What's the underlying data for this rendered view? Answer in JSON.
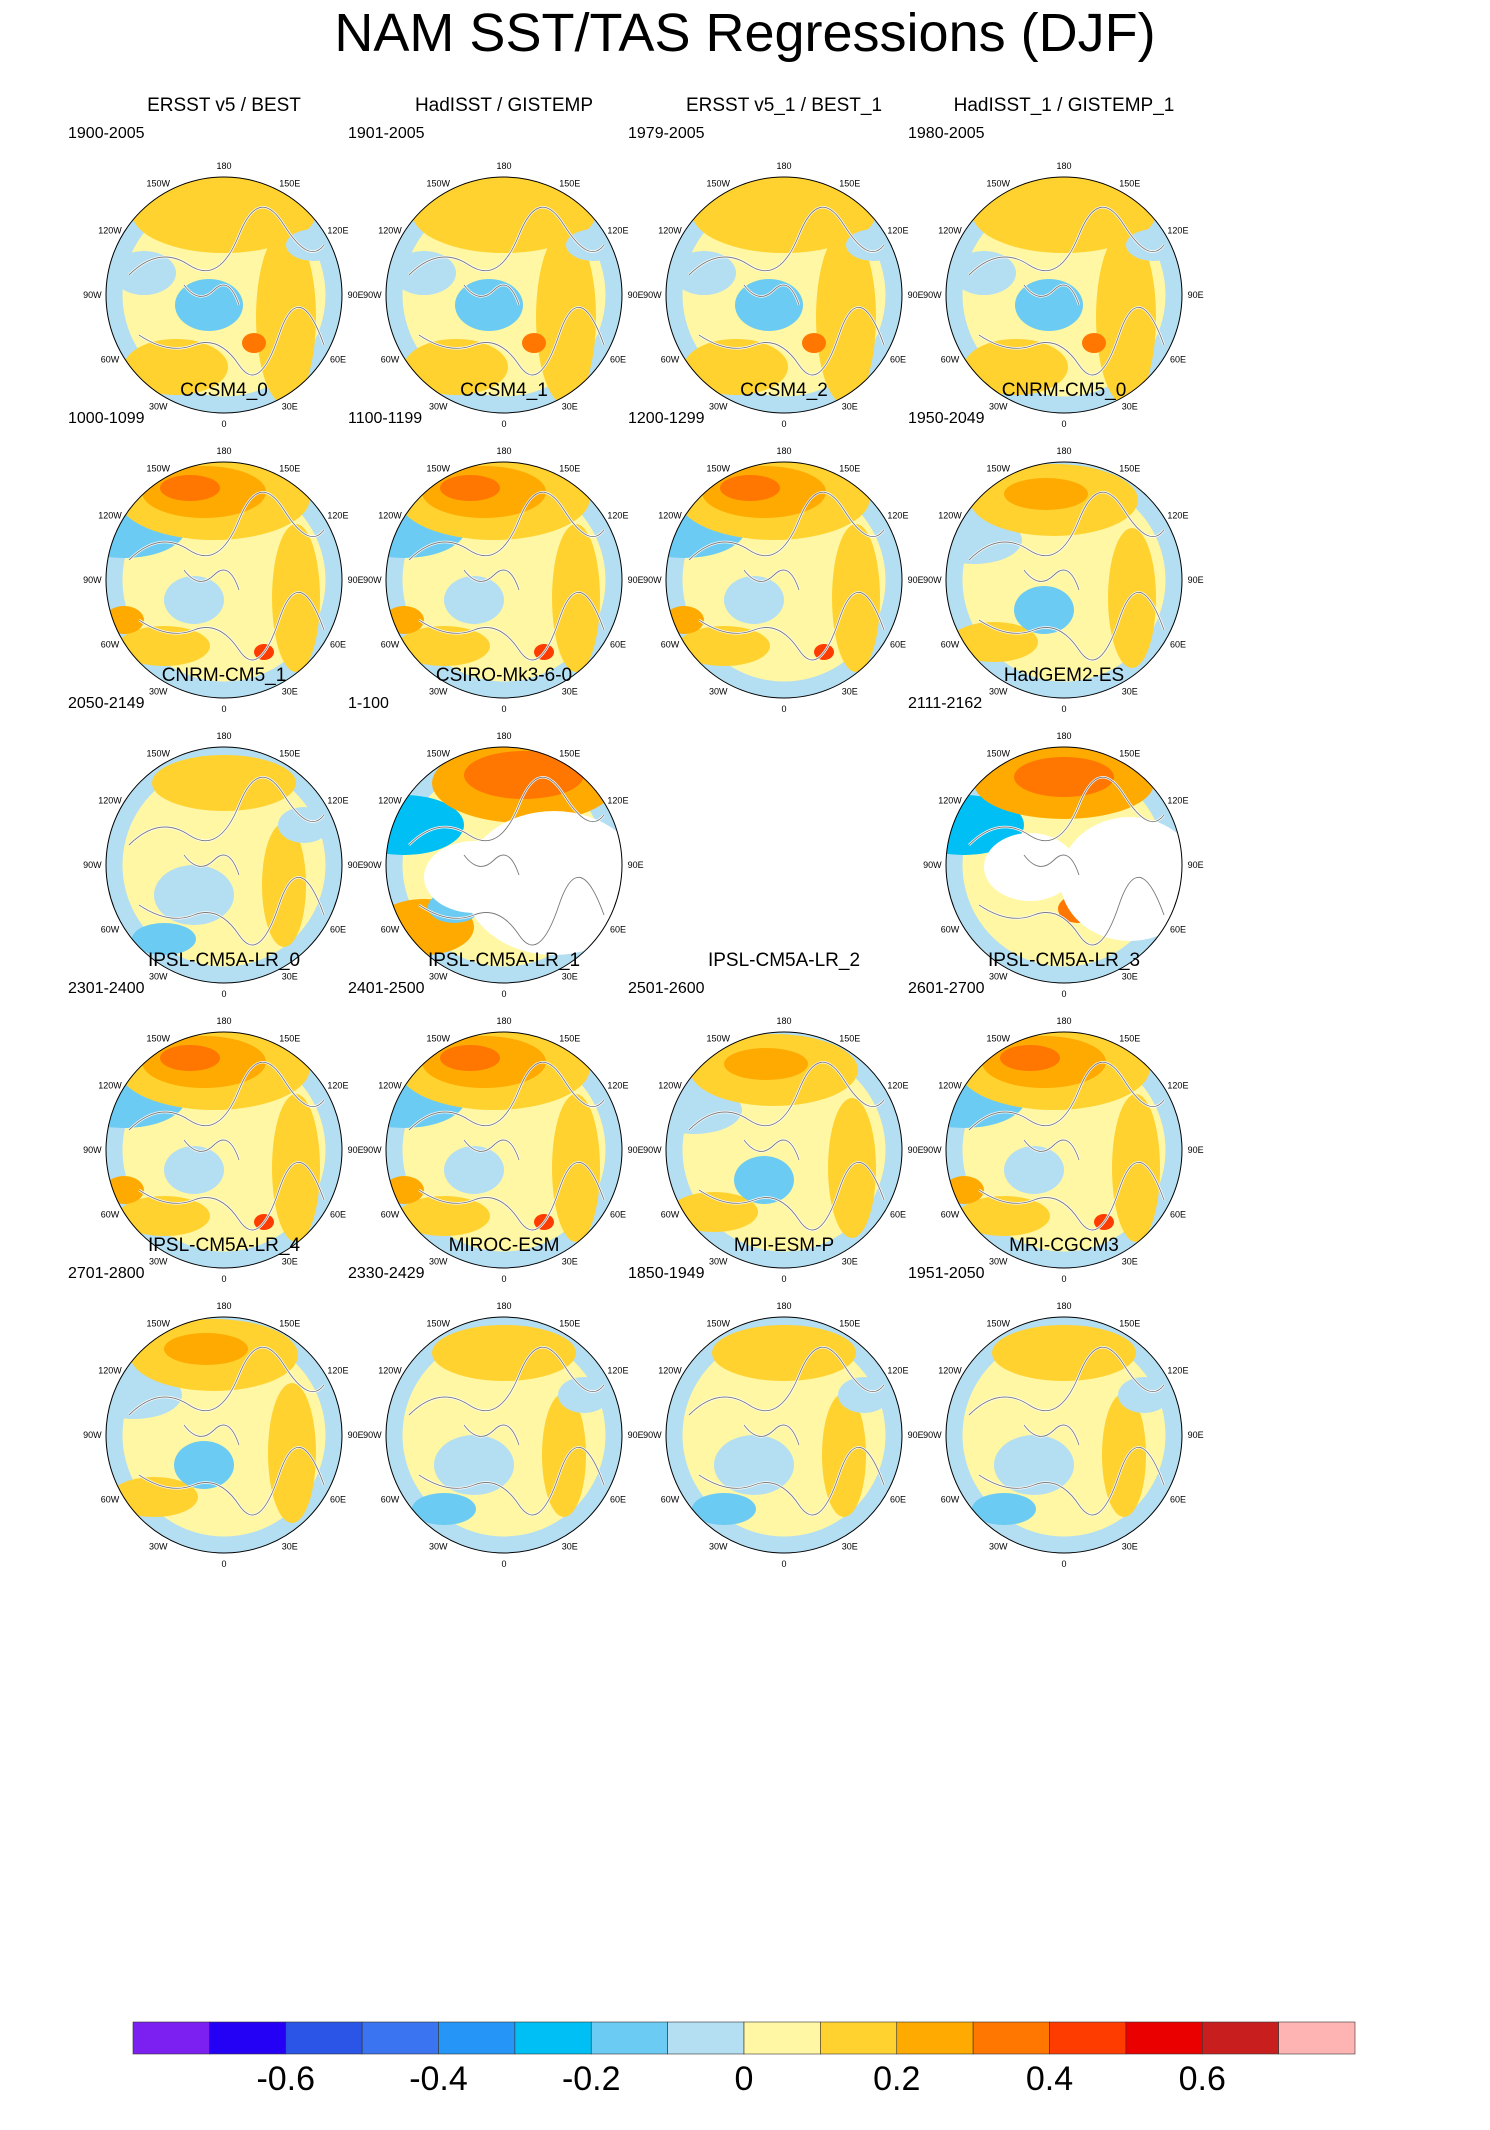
{
  "title": "NAM SST/TAS Regressions (DJF)",
  "longitude_labels": [
    "180",
    "150E",
    "120E",
    "90E",
    "60E",
    "30E",
    "0",
    "30W",
    "60W",
    "90W",
    "120W",
    "150W"
  ],
  "panels": [
    {
      "title": "ERSST v5 / BEST",
      "period": "1900-2005",
      "pattern": "obs"
    },
    {
      "title": "HadISST / GISTEMP",
      "period": "1901-2005",
      "pattern": "obs"
    },
    {
      "title": "ERSST v5_1 / BEST_1",
      "period": "1979-2005",
      "pattern": "obs"
    },
    {
      "title": "HadISST_1 / GISTEMP_1",
      "period": "1980-2005",
      "pattern": "obs"
    },
    {
      "title": "CCSM4_0",
      "period": "1000-1099",
      "pattern": "strong"
    },
    {
      "title": "CCSM4_1",
      "period": "1100-1199",
      "pattern": "strong"
    },
    {
      "title": "CCSM4_2",
      "period": "1200-1299",
      "pattern": "strong"
    },
    {
      "title": "CNRM-CM5_0",
      "period": "1950-2049",
      "pattern": "moderate"
    },
    {
      "title": "CNRM-CM5_1",
      "period": "2050-2149",
      "pattern": "weak"
    },
    {
      "title": "CSIRO-Mk3-6-0",
      "period": "1-100",
      "pattern": "ocean-only"
    },
    null,
    {
      "title": "HadGEM2-ES",
      "period": "2111-2162",
      "pattern": "partial"
    },
    {
      "title": "IPSL-CM5A-LR_0",
      "period": "2301-2400",
      "pattern": "strong"
    },
    {
      "title": "IPSL-CM5A-LR_1",
      "period": "2401-2500",
      "pattern": "strong"
    },
    {
      "title": "IPSL-CM5A-LR_2",
      "period": "2501-2600",
      "pattern": "moderate"
    },
    {
      "title": "IPSL-CM5A-LR_3",
      "period": "2601-2700",
      "pattern": "strong"
    },
    {
      "title": "IPSL-CM5A-LR_4",
      "period": "2701-2800",
      "pattern": "moderate"
    },
    {
      "title": "MIROC-ESM",
      "period": "2330-2429",
      "pattern": "weak"
    },
    {
      "title": "MPI-ESM-P",
      "period": "1850-1949",
      "pattern": "weak"
    },
    {
      "title": "MRI-CGCM3",
      "period": "1951-2050",
      "pattern": "weak"
    }
  ],
  "colorbar": {
    "colors": [
      "#7b20f0",
      "#2400f5",
      "#2a55e6",
      "#3a74f0",
      "#2596f7",
      "#00bff5",
      "#6ccbf2",
      "#b4def2",
      "#fff7a3",
      "#ffd230",
      "#ffaa00",
      "#ff7600",
      "#ff3c00",
      "#eb0000",
      "#c81e1e",
      "#ffb4b4"
    ],
    "tick_labels": [
      "-0.6",
      "-0.4",
      "-0.2",
      "0",
      "0.2",
      "0.4",
      "0.6"
    ],
    "tick_values": [
      -0.6,
      -0.4,
      -0.2,
      0,
      0.2,
      0.4,
      0.6
    ]
  }
}
